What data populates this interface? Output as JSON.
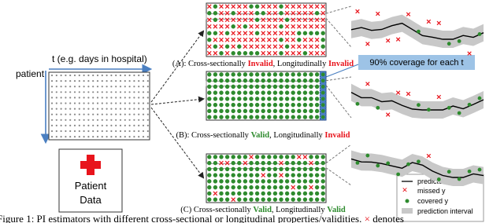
{
  "axis_label": "t (e.g. days in hospital)",
  "row_label": "patient",
  "data_box": {
    "line1": "Patient",
    "line2": "Data"
  },
  "callout": "90% coverage for each t",
  "panels": [
    {
      "prefix": "(A): Cross-sectionally ",
      "cross": "Invalid",
      "middle": ", Longitudinally ",
      "long": "Invalid"
    },
    {
      "prefix": "(B): Cross-sectionally ",
      "cross": "Valid",
      "middle": ", Longitudinally ",
      "long": "Invalid"
    },
    {
      "prefix": "(C) Cross-sectionally ",
      "cross": "Valid",
      "middle": ", Longitudinally ",
      "long": "Valid"
    }
  ],
  "legend": [
    "predicted y",
    "missed y",
    "covered y",
    "prediction interval"
  ],
  "caption": {
    "before": "Figure 1:  PI estimators with different cross-sectional or longitudinal properties/validities.",
    "mark": "×",
    "after": "denotes"
  }
}
